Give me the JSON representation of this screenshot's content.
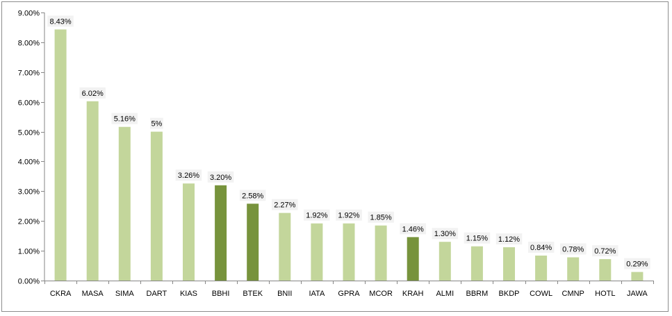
{
  "chart_data": {
    "type": "bar",
    "title": "",
    "xlabel": "",
    "ylabel": "",
    "categories": [
      "CKRA",
      "MASA",
      "SIMA",
      "DART",
      "KIAS",
      "BBHI",
      "BTEK",
      "BNII",
      "IATA",
      "GPRA",
      "MCOR",
      "KRAH",
      "ALMI",
      "BBRM",
      "BKDP",
      "COWL",
      "CMNP",
      "HOTL",
      "JAWA"
    ],
    "values": [
      8.43,
      6.02,
      5.16,
      5.0,
      3.26,
      3.2,
      2.58,
      2.27,
      1.92,
      1.92,
      1.85,
      1.46,
      1.3,
      1.15,
      1.12,
      0.84,
      0.78,
      0.72,
      0.29
    ],
    "data_labels": [
      "8.43%",
      "6.02%",
      "5.16%",
      "5%",
      "3.26%",
      "3.20%",
      "2.58%",
      "2.27%",
      "1.92%",
      "1.92%",
      "1.85%",
      "1.46%",
      "1.30%",
      "1.15%",
      "1.12%",
      "0.84%",
      "0.78%",
      "0.72%",
      "0.29%"
    ],
    "highlighted": [
      "BBHI",
      "BTEK",
      "KRAH"
    ],
    "ylim": [
      0,
      9
    ],
    "y_ticks": [
      0,
      1,
      2,
      3,
      4,
      5,
      6,
      7,
      8,
      9
    ],
    "y_tick_labels": [
      "0.00%",
      "1.00%",
      "2.00%",
      "3.00%",
      "4.00%",
      "5.00%",
      "6.00%",
      "7.00%",
      "8.00%",
      "9.00%"
    ],
    "grid": false,
    "legend": "none",
    "colors": {
      "bar": "#c3d69b",
      "highlight": "#77933c",
      "axis": "#868686",
      "label_bg": "#f2f2f2"
    }
  }
}
